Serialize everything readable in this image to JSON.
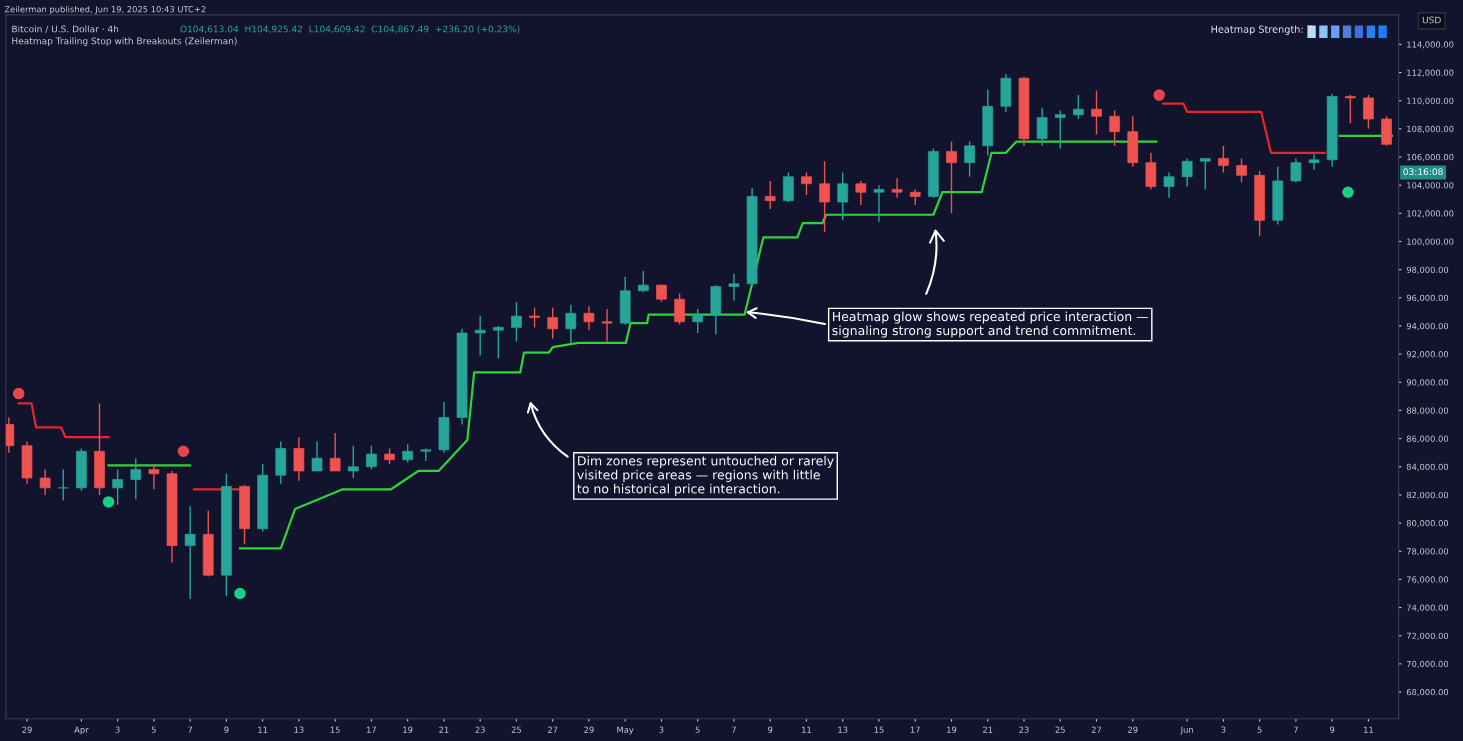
{
  "chart_data": {
    "type": "candlestick",
    "title": "Bitcoin / U.S. Dollar · 4h",
    "subtitle": "Heatmap Trailing Stop with Breakouts (Zeilerman)",
    "annotations": [
      "Zeilerman published, Jun 19, 2025 10:43 UTC+2",
      "O104,613.04  H104,925.42  L104,609.42  C104,867.49  +236.20 (+0.23%)",
      "Heatmap Strength: 7",
      "USD",
      "03:16:08",
      {
        "text": "Heatmap glow shows repeated price interaction —\nsignaling strong support and trend commitment.",
        "x": "2025-05-07T12:00",
        "y": 95000
      },
      "Dim zones represent untouched or rarely\nvisited price areas — regions with little\nto no historical price interaction."
    ],
    "x": [
      "2025-03-28",
      "2025-03-29",
      "2025-03-30",
      "2025-03-31",
      "2025-04-01",
      "2025-04-02",
      "2025-04-03",
      "2025-04-04",
      "2025-04-05",
      "2025-04-06",
      "2025-04-07",
      "2025-04-08",
      "2025-04-09",
      "2025-04-10",
      "2025-04-11",
      "2025-04-12",
      "2025-04-13",
      "2025-04-14",
      "2025-04-15",
      "2025-04-16",
      "2025-04-17",
      "2025-04-18",
      "2025-04-19",
      "2025-04-20",
      "2025-04-21",
      "2025-04-22",
      "2025-04-23",
      "2025-04-24",
      "2025-04-25",
      "2025-04-26",
      "2025-04-27",
      "2025-04-28",
      "2025-04-29",
      "2025-04-30",
      "2025-05-01",
      "2025-05-02",
      "2025-05-03",
      "2025-05-04",
      "2025-05-05",
      "2025-05-06",
      "2025-05-07",
      "2025-05-08",
      "2025-05-09",
      "2025-05-10",
      "2025-05-11",
      "2025-05-12",
      "2025-05-13",
      "2025-05-14",
      "2025-05-15",
      "2025-05-16",
      "2025-05-17",
      "2025-05-18",
      "2025-05-19",
      "2025-05-20",
      "2025-05-21",
      "2025-05-22",
      "2025-05-23",
      "2025-05-24",
      "2025-05-25",
      "2025-05-26",
      "2025-05-27",
      "2025-05-28",
      "2025-05-29",
      "2025-05-30",
      "2025-05-31",
      "2025-06-01",
      "2025-06-02",
      "2025-06-03",
      "2025-06-04",
      "2025-06-05",
      "2025-06-06",
      "2025-06-07",
      "2025-06-08",
      "2025-06-09",
      "2025-06-10",
      "2025-06-11",
      "2025-06-12"
    ],
    "ohlc": [
      [
        87000,
        87500,
        85000,
        85500
      ],
      [
        85500,
        85800,
        82800,
        83200
      ],
      [
        83200,
        83800,
        82000,
        82500
      ],
      [
        82500,
        83800,
        81600,
        82500
      ],
      [
        82500,
        85300,
        82300,
        85100
      ],
      [
        85100,
        88500,
        82000,
        82500
      ],
      [
        82500,
        83800,
        81300,
        83100
      ],
      [
        83100,
        84600,
        81700,
        83800
      ],
      [
        83800,
        84200,
        82400,
        83500
      ],
      [
        83500,
        83700,
        77200,
        78400
      ],
      [
        78400,
        81200,
        74600,
        79200
      ],
      [
        79200,
        80900,
        76200,
        76300
      ],
      [
        76300,
        83500,
        74800,
        82600
      ],
      [
        82600,
        82700,
        78500,
        79600
      ],
      [
        79600,
        84200,
        79400,
        83400
      ],
      [
        83400,
        85800,
        82800,
        85300
      ],
      [
        85300,
        86100,
        83000,
        83700
      ],
      [
        83700,
        85800,
        83700,
        84600
      ],
      [
        84600,
        86400,
        83700,
        83700
      ],
      [
        83700,
        85500,
        83200,
        84000
      ],
      [
        84000,
        85500,
        83800,
        84900
      ],
      [
        84900,
        85300,
        84200,
        84500
      ],
      [
        84500,
        85600,
        84300,
        85100
      ],
      [
        85100,
        85300,
        84400,
        85200
      ],
      [
        85200,
        88600,
        85000,
        87500
      ],
      [
        87500,
        93800,
        87000,
        93500
      ],
      [
        93500,
        94700,
        91900,
        93700
      ],
      [
        93700,
        94000,
        91700,
        93900
      ],
      [
        93900,
        95700,
        92900,
        94700
      ],
      [
        94700,
        95300,
        93900,
        94600
      ],
      [
        94600,
        95300,
        93100,
        93800
      ],
      [
        93800,
        95500,
        92800,
        94900
      ],
      [
        94900,
        95400,
        93700,
        94300
      ],
      [
        94300,
        95200,
        92900,
        94200
      ],
      [
        94200,
        97500,
        94100,
        96500
      ],
      [
        96500,
        97900,
        96400,
        96900
      ],
      [
        96900,
        96900,
        95700,
        95900
      ],
      [
        95900,
        96300,
        94100,
        94300
      ],
      [
        94300,
        95200,
        93500,
        94800
      ],
      [
        94800,
        96900,
        93400,
        96800
      ],
      [
        96800,
        97700,
        95800,
        97000
      ],
      [
        97000,
        103800,
        96900,
        103200
      ],
      [
        103200,
        104300,
        102300,
        102900
      ],
      [
        102900,
        104900,
        102800,
        104600
      ],
      [
        104600,
        104900,
        103300,
        104100
      ],
      [
        104100,
        105700,
        100700,
        102800
      ],
      [
        102800,
        104900,
        101500,
        104100
      ],
      [
        104100,
        104300,
        102600,
        103500
      ],
      [
        103500,
        104000,
        101400,
        103700
      ],
      [
        103700,
        104500,
        103100,
        103500
      ],
      [
        103500,
        103700,
        102600,
        103200
      ],
      [
        103200,
        106600,
        103100,
        106400
      ],
      [
        106400,
        107100,
        102000,
        105600
      ],
      [
        105600,
        107100,
        104600,
        106800
      ],
      [
        106800,
        110800,
        106100,
        109600
      ],
      [
        109600,
        111900,
        109200,
        111600
      ],
      [
        111600,
        111700,
        106800,
        107300
      ],
      [
        107300,
        109500,
        106800,
        108800
      ],
      [
        108800,
        109300,
        106600,
        109000
      ],
      [
        109000,
        110400,
        108700,
        109400
      ],
      [
        109400,
        110700,
        107600,
        108900
      ],
      [
        108900,
        109300,
        106800,
        107800
      ],
      [
        107800,
        108900,
        105300,
        105600
      ],
      [
        105600,
        106300,
        103700,
        103900
      ],
      [
        103900,
        104900,
        103100,
        104600
      ],
      [
        104600,
        105900,
        103900,
        105700
      ],
      [
        105700,
        105900,
        103700,
        105900
      ],
      [
        105900,
        106800,
        104900,
        105400
      ],
      [
        105400,
        105900,
        104200,
        104700
      ],
      [
        104700,
        105000,
        100400,
        101500
      ],
      [
        101500,
        105300,
        101200,
        104300
      ],
      [
        104300,
        105900,
        104200,
        105600
      ],
      [
        105600,
        106200,
        105100,
        105800
      ],
      [
        105800,
        110500,
        105300,
        110300
      ],
      [
        110300,
        110400,
        108400,
        110200
      ],
      [
        110200,
        110400,
        108000,
        108700
      ],
      [
        108700,
        108900,
        106800,
        106900
      ]
    ],
    "series": [
      {
        "type": "line",
        "color": "#2fd33a",
        "x": [
          "2025-04-02T12:00",
          "2025-04-07",
          "2025-04-08",
          "2025-04-09T18:00",
          "2025-04-12",
          "2025-04-12T19:00",
          "2025-04-15T10:00",
          "2025-04-18T02:00",
          "2025-04-19T14:00",
          "2025-04-20T17:00",
          "2025-04-22T07:00",
          "2025-04-22T16:00",
          "2025-04-25T05:00",
          "2025-04-25T10:00",
          "2025-04-26T19:00",
          "2025-04-27",
          "2025-04-28T10:00",
          "2025-05-01T01:00",
          "2025-05-01T07:00",
          "2025-05-02T05:00",
          "2025-05-02T07:00",
          "2025-05-07T14:00",
          "2025-05-08T15:00",
          "2025-05-10T12:00",
          "2025-05-10T19:00",
          "2025-05-11T21:00",
          "2025-05-12T02:00",
          "2025-05-18",
          "2025-05-18T12:00",
          "2025-05-20T16:00",
          "2025-05-21T05:00",
          "2025-05-22",
          "2025-05-22T14:00",
          "2025-05-30T07:00",
          "2025-06-05",
          "2025-06-09T10:00",
          "2025-06-12T07:00"
        ],
        "values": [
          84100,
          84100,
          null,
          78200,
          78200,
          81000,
          82400,
          82400,
          83700,
          83700,
          85900,
          90700,
          90700,
          92100,
          92100,
          92500,
          92800,
          92800,
          94200,
          94200,
          94800,
          94800,
          100300,
          100300,
          101300,
          101300,
          101900,
          101900,
          103500,
          103500,
          106300,
          106300,
          107100,
          107100,
          null,
          107500,
          107500
        ]
      },
      {
        "type": "line",
        "color": "#e8262e",
        "x": [
          "2025-03-28T13:00",
          "2025-03-29T06:00",
          "2025-03-29T12:00",
          "2025-03-30T21:00",
          "2025-03-31T03:00",
          "2025-04-02T12:00",
          "2025-04-05",
          "2025-04-07T05:00",
          "2025-04-09T17:00",
          "2025-05-01",
          "2025-05-30T16:00",
          "2025-05-31T19:00",
          "2025-06-01",
          "2025-06-05T02:00",
          "2025-06-05T15:00",
          "2025-06-08T14:00"
        ],
        "values": [
          88500,
          88500,
          86800,
          86800,
          86100,
          86100,
          null,
          82400,
          82400,
          null,
          109800,
          109800,
          109200,
          109200,
          106300,
          106300
        ]
      },
      {
        "type": "scatter",
        "color": "#f0474f",
        "marker": "circle",
        "x": [
          "2025-03-28T13:00",
          "2025-04-06T15:00",
          "2025-05-30T11:00"
        ],
        "values": [
          89200,
          85100,
          110400
        ]
      },
      {
        "type": "scatter",
        "color": "#19d68a",
        "marker": "circle",
        "x": [
          "2025-04-02T12:00",
          "2025-04-09T18:00",
          "2025-06-09T21:00"
        ],
        "values": [
          81500,
          75000,
          103500
        ]
      }
    ],
    "xlim": [
      "2025-03-27T20:00",
      "2025-06-12T16:00"
    ],
    "xticks": [
      {
        "value": "2025-03-29",
        "label": "29"
      },
      {
        "value": "2025-04-01",
        "label": "Apr"
      },
      {
        "value": "2025-04-03",
        "label": "3"
      },
      {
        "value": "2025-04-05",
        "label": "5"
      },
      {
        "value": "2025-04-07",
        "label": "7"
      },
      {
        "value": "2025-04-09",
        "label": "9"
      },
      {
        "value": "2025-04-11",
        "label": "11"
      },
      {
        "value": "2025-04-13",
        "label": "13"
      },
      {
        "value": "2025-04-15",
        "label": "15"
      },
      {
        "value": "2025-04-17",
        "label": "17"
      },
      {
        "value": "2025-04-19",
        "label": "19"
      },
      {
        "value": "2025-04-21",
        "label": "21"
      },
      {
        "value": "2025-04-23",
        "label": "23"
      },
      {
        "value": "2025-04-25",
        "label": "25"
      },
      {
        "value": "2025-04-27",
        "label": "27"
      },
      {
        "value": "2025-04-29",
        "label": "29"
      },
      {
        "value": "2025-05-01",
        "label": "May"
      },
      {
        "value": "2025-05-03",
        "label": "3"
      },
      {
        "value": "2025-05-05",
        "label": "5"
      },
      {
        "value": "2025-05-07",
        "label": "7"
      },
      {
        "value": "2025-05-09",
        "label": "9"
      },
      {
        "value": "2025-05-11",
        "label": "11"
      },
      {
        "value": "2025-05-13",
        "label": "13"
      },
      {
        "value": "2025-05-15",
        "label": "15"
      },
      {
        "value": "2025-05-17",
        "label": "17"
      },
      {
        "value": "2025-05-19",
        "label": "19"
      },
      {
        "value": "2025-05-21",
        "label": "21"
      },
      {
        "value": "2025-05-23",
        "label": "23"
      },
      {
        "value": "2025-05-25",
        "label": "25"
      },
      {
        "value": "2025-05-27",
        "label": "27"
      },
      {
        "value": "2025-05-29",
        "label": "29"
      },
      {
        "value": "2025-06-01",
        "label": "Jun"
      },
      {
        "value": "2025-06-03",
        "label": "3"
      },
      {
        "value": "2025-06-05",
        "label": "5"
      },
      {
        "value": "2025-06-07",
        "label": "7"
      },
      {
        "value": "2025-06-09",
        "label": "9"
      },
      {
        "value": "2025-06-11",
        "label": "11"
      }
    ],
    "ylim": [
      66100,
      116100
    ],
    "yticks": [
      {
        "value": 68000,
        "label": "68,000.00"
      },
      {
        "value": 70000,
        "label": "70,000.00"
      },
      {
        "value": 72000,
        "label": "72,000.00"
      },
      {
        "value": 74000,
        "label": "74,000.00"
      },
      {
        "value": 76000,
        "label": "76,000.00"
      },
      {
        "value": 78000,
        "label": "78,000.00"
      },
      {
        "value": 80000,
        "label": "80,000.00"
      },
      {
        "value": 82000,
        "label": "82,000.00"
      },
      {
        "value": 84000,
        "label": "84,000.00"
      },
      {
        "value": 86000,
        "label": "86,000.00"
      },
      {
        "value": 88000,
        "label": "88,000.00"
      },
      {
        "value": 90000,
        "label": "90,000.00"
      },
      {
        "value": 92000,
        "label": "92,000.00"
      },
      {
        "value": 94000,
        "label": "94,000.00"
      },
      {
        "value": 96000,
        "label": "96,000.00"
      },
      {
        "value": 98000,
        "label": "98,000.00"
      },
      {
        "value": 100000,
        "label": "100,000.00"
      },
      {
        "value": 102000,
        "label": "102,000.00"
      },
      {
        "value": 104000,
        "label": "104,000.00"
      },
      {
        "value": 106000,
        "label": "106,000.00"
      },
      {
        "value": 108000,
        "label": "108,000.00"
      },
      {
        "value": 110000,
        "label": "110,000.00"
      },
      {
        "value": 112000,
        "label": "112,000.00"
      },
      {
        "value": 114000,
        "label": "114,000.00"
      }
    ],
    "grid": false
  }
}
